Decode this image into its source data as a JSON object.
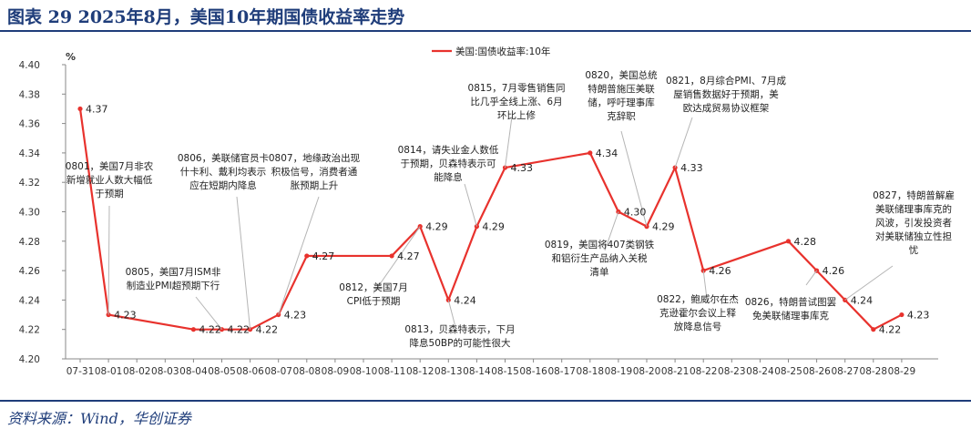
{
  "header": {
    "title": "图表 29  2025年8月，美国10年期国债收益率走势"
  },
  "footer": {
    "source": "资料来源：Wind，华创证券"
  },
  "colors": {
    "line": "#e8322d",
    "title": "#1f3d7a",
    "axis": "#888888"
  },
  "chart_data": {
    "type": "line",
    "ylabel": "%",
    "ylim": [
      4.2,
      4.4
    ],
    "yticks": [
      "4.20",
      "4.22",
      "4.24",
      "4.26",
      "4.28",
      "4.30",
      "4.32",
      "4.34",
      "4.36",
      "4.38",
      "4.40"
    ],
    "categories": [
      "07-31",
      "08-01",
      "08-02",
      "08-03",
      "08-04",
      "08-05",
      "08-06",
      "08-07",
      "08-08",
      "08-09",
      "08-10",
      "08-11",
      "08-12",
      "08-13",
      "08-14",
      "08-15",
      "08-16",
      "08-17",
      "08-18",
      "08-19",
      "08-20",
      "08-21",
      "08-22",
      "08-23",
      "08-24",
      "08-25",
      "08-26",
      "08-27",
      "08-28",
      "08-29"
    ],
    "legend_position": "top-center",
    "series": [
      {
        "name": "美国:国债收益率:10年",
        "points": [
          {
            "x": "07-31",
            "y": 4.37
          },
          {
            "x": "08-01",
            "y": 4.23
          },
          {
            "x": "08-04",
            "y": 4.22
          },
          {
            "x": "08-05",
            "y": 4.22
          },
          {
            "x": "08-06",
            "y": 4.22
          },
          {
            "x": "08-07",
            "y": 4.23
          },
          {
            "x": "08-08",
            "y": 4.27
          },
          {
            "x": "08-11",
            "y": 4.27
          },
          {
            "x": "08-12",
            "y": 4.29
          },
          {
            "x": "08-13",
            "y": 4.24
          },
          {
            "x": "08-14",
            "y": 4.29
          },
          {
            "x": "08-15",
            "y": 4.33
          },
          {
            "x": "08-18",
            "y": 4.34
          },
          {
            "x": "08-19",
            "y": 4.3
          },
          {
            "x": "08-20",
            "y": 4.29
          },
          {
            "x": "08-21",
            "y": 4.33
          },
          {
            "x": "08-22",
            "y": 4.26
          },
          {
            "x": "08-25",
            "y": 4.28
          },
          {
            "x": "08-26",
            "y": 4.26
          },
          {
            "x": "08-27",
            "y": 4.24
          },
          {
            "x": "08-28",
            "y": 4.22
          },
          {
            "x": "08-29",
            "y": 4.23
          }
        ]
      }
    ],
    "data_labels": [
      {
        "x": "07-31",
        "text": "4.37"
      },
      {
        "x": "08-01",
        "text": "4.23"
      },
      {
        "x": "08-04",
        "text": "4.22"
      },
      {
        "x": "08-05",
        "text": "4.22"
      },
      {
        "x": "08-06",
        "text": "4.22"
      },
      {
        "x": "08-07",
        "text": "4.23"
      },
      {
        "x": "08-08",
        "text": "4.27"
      },
      {
        "x": "08-11",
        "text": "4.27"
      },
      {
        "x": "08-12",
        "text": "4.29"
      },
      {
        "x": "08-13",
        "text": "4.24"
      },
      {
        "x": "08-14",
        "text": "4.29"
      },
      {
        "x": "08-15",
        "text": "4.33"
      },
      {
        "x": "08-18",
        "text": "4.34"
      },
      {
        "x": "08-19",
        "text": "4.30"
      },
      {
        "x": "08-20",
        "text": "4.29"
      },
      {
        "x": "08-21",
        "text": "4.33"
      },
      {
        "x": "08-22",
        "text": "4.26"
      },
      {
        "x": "08-25",
        "text": "4.28"
      },
      {
        "x": "08-26",
        "text": "4.26"
      },
      {
        "x": "08-27",
        "text": "4.24"
      },
      {
        "x": "08-28",
        "text": "4.22"
      },
      {
        "x": "08-29",
        "text": "4.23"
      }
    ],
    "annotations": [
      {
        "target": "08-01",
        "lines": [
          "0801，美国7月非农",
          "新增就业人数大幅低",
          "于预期"
        ]
      },
      {
        "target": "08-05",
        "lines": [
          "0805，美国7月ISM非",
          "制造业PMI超预期下行"
        ]
      },
      {
        "target": "08-06",
        "lines": [
          "0806，美联储官员卡",
          "什卡利、戴利均表示",
          "应在短期内降息"
        ]
      },
      {
        "target": "08-07",
        "lines": [
          "0807，地缘政治出现",
          "积极信号，消费者通",
          "胀预期上升"
        ]
      },
      {
        "target": "08-12",
        "lines": [
          "0812，美国7月",
          "CPI低于预期"
        ]
      },
      {
        "target": "08-13",
        "lines": [
          "0813，贝森特表示，下月",
          "降息50BP的可能性很大"
        ]
      },
      {
        "target": "08-14",
        "lines": [
          "0814，请失业金人数低",
          "于预期，贝森特表示可",
          "能降息"
        ]
      },
      {
        "target": "08-15",
        "lines": [
          "0815，7月零售销售同",
          "比几乎全线上涨、6月",
          "环比上修"
        ]
      },
      {
        "target": "08-19",
        "lines": [
          "0819，美国将407类钢铁",
          "和铝衍生产品纳入关税",
          "清单"
        ]
      },
      {
        "target": "08-20",
        "lines": [
          "0820，美国总统",
          "特朗普施压美联",
          "储，呼吁理事库",
          "克辞职"
        ]
      },
      {
        "target": "08-21",
        "lines": [
          "0821，8月综合PMI、7月成",
          "屋销售数据好于预期，美",
          "欧达成贸易协议框架"
        ]
      },
      {
        "target": "08-22",
        "lines": [
          "0822，鲍威尔在杰",
          "克逊霍尔会议上释",
          "放降息信号"
        ]
      },
      {
        "target": "08-26",
        "lines": [
          "0826，特朗普试图罢",
          "免美联储理事库克"
        ]
      },
      {
        "target": "08-27",
        "lines": [
          "0827，特朗普解雇",
          "美联储理事库克的",
          "风波，引发投资者",
          "对美联储独立性担",
          "忧"
        ]
      }
    ]
  }
}
